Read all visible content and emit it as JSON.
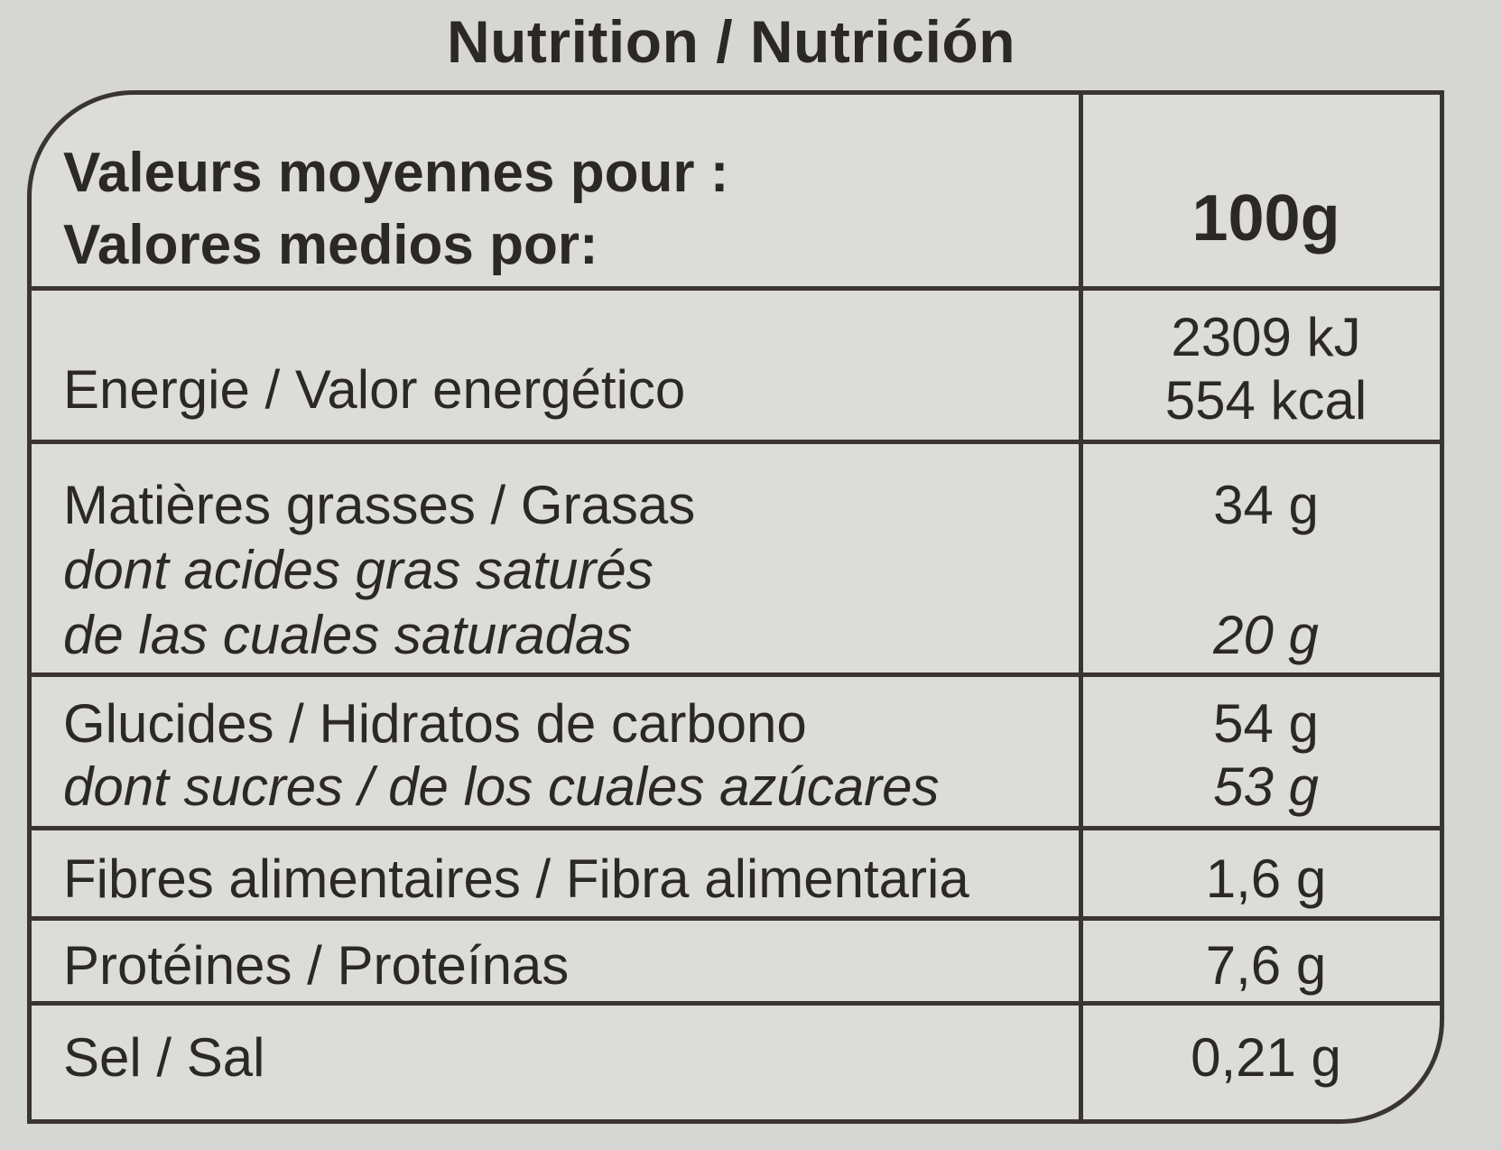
{
  "title": "Nutrition / Nutrición",
  "header": {
    "label_fr": "Valeurs moyennes pour :",
    "label_es": "Valores medios por:",
    "per": "100g"
  },
  "rows": [
    {
      "label": "Energie / Valor energético",
      "value_kj": "2309 kJ",
      "value_kcal": "554 kcal"
    },
    {
      "label": "Matières grasses / Grasas",
      "value": "34 g",
      "sub_label_1": "dont acides gras saturés",
      "sub_label_2": "de las cuales saturadas",
      "sub_value": "20 g"
    },
    {
      "label": "Glucides / Hidratos de carbono",
      "value": "54 g",
      "sub_label": "dont sucres / de los cuales azúcares",
      "sub_value": "53 g"
    },
    {
      "label": "Fibres alimentaires / Fibra alimentaria",
      "value": "1,6 g"
    },
    {
      "label": "Protéines / Proteínas",
      "value": "7,6 g"
    },
    {
      "label": "Sel / Sal",
      "value": "0,21 g"
    }
  ]
}
